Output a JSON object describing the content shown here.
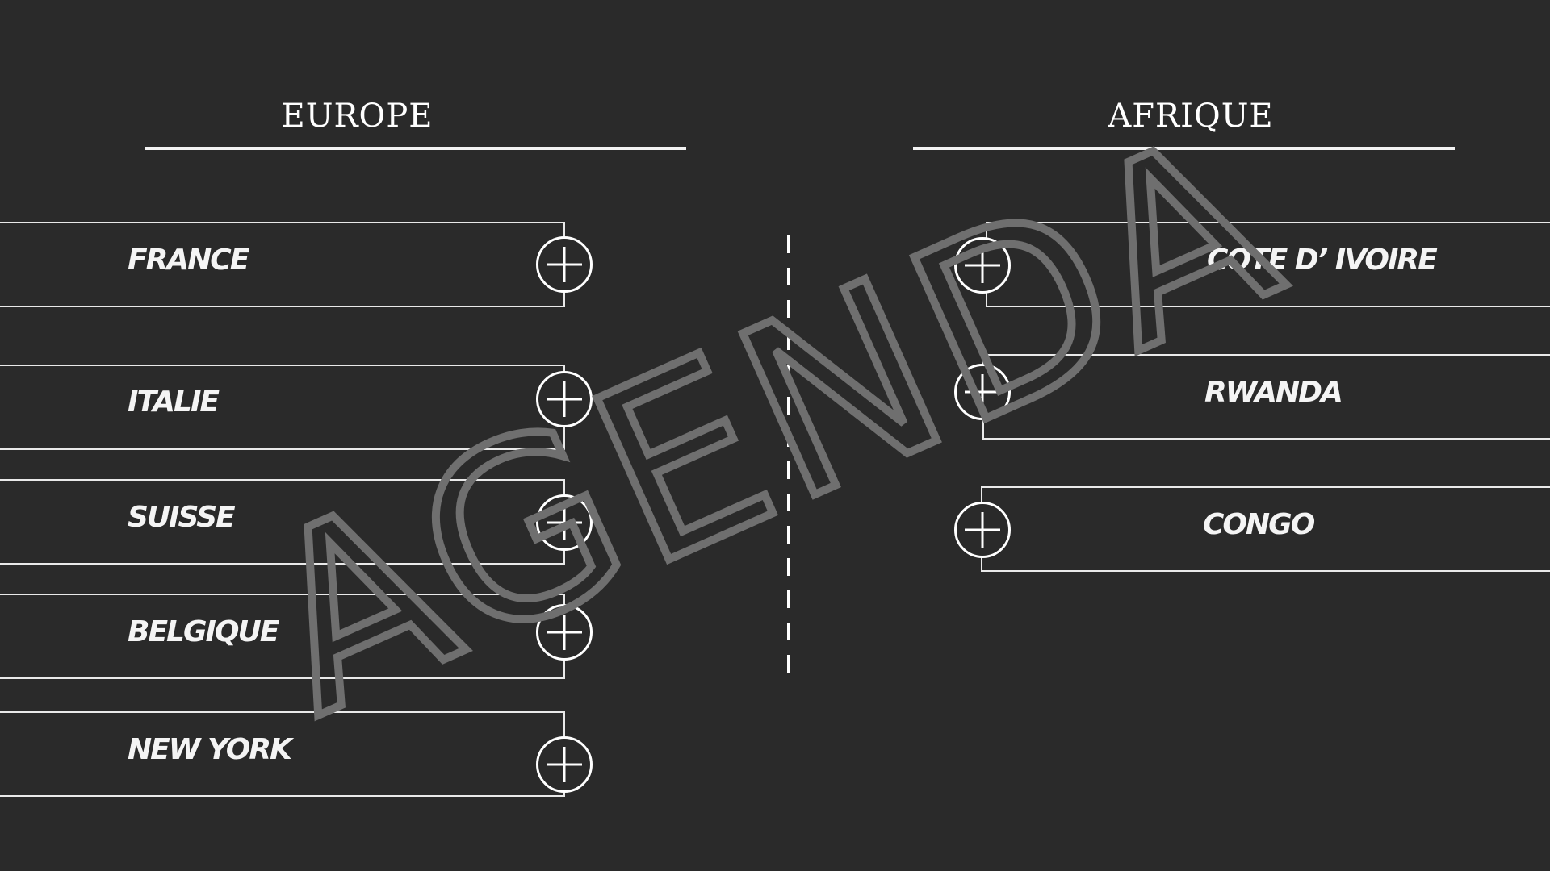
{
  "europe": {
    "title": "EUROPE",
    "items": [
      {
        "label": "FRANCE"
      },
      {
        "label": "ITALIE"
      },
      {
        "label": "SUISSE"
      },
      {
        "label": "BELGIQUE"
      },
      {
        "label": "NEW YORK"
      }
    ]
  },
  "afrique": {
    "title": "AFRIQUE",
    "items": [
      {
        "label": "COTE D’ IVOIRE"
      },
      {
        "label": "RWANDA"
      },
      {
        "label": "CONGO"
      }
    ]
  },
  "watermark": {
    "text": "AGENDA"
  },
  "icons": {
    "add": "plus-circle-icon"
  },
  "colors": {
    "background": "#2a2a2a",
    "foreground": "#ffffff",
    "watermark": "#6f6f6f"
  }
}
